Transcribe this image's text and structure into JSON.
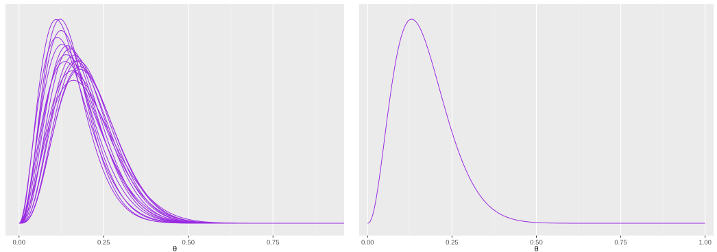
{
  "colors": {
    "curve": "#9a2be2",
    "panel": "#ebebeb",
    "grid": "#ffffff"
  },
  "chart_data": [
    {
      "type": "line",
      "title": "",
      "xlabel": "θ",
      "ylabel": "",
      "xlim": [
        -0.04,
        0.96
      ],
      "ylim": [
        0,
        1.06
      ],
      "x_ticks": [
        "0.00",
        "0.25",
        "0.50",
        "0.75"
      ],
      "grid": true,
      "legend": "none",
      "density_family": "beta",
      "series": [
        {
          "a": 3.9,
          "b": 22.0
        },
        {
          "a": 3.4,
          "b": 20.5
        },
        {
          "a": 3.7,
          "b": 20.0
        },
        {
          "a": 3.1,
          "b": 17.5
        },
        {
          "a": 3.4,
          "b": 17.5
        },
        {
          "a": 3.9,
          "b": 18.5
        },
        {
          "a": 4.1,
          "b": 18.5
        },
        {
          "a": 3.5,
          "b": 16.5
        },
        {
          "a": 4.3,
          "b": 18.0
        },
        {
          "a": 4.2,
          "b": 17.0
        },
        {
          "a": 3.2,
          "b": 15.0
        },
        {
          "a": 4.5,
          "b": 17.5
        },
        {
          "a": 4.4,
          "b": 16.5
        },
        {
          "a": 3.5,
          "b": 14.5
        },
        {
          "a": 4.3,
          "b": 16.0
        },
        {
          "a": 3.3,
          "b": 13.0
        }
      ]
    },
    {
      "type": "line",
      "title": "",
      "xlabel": "θ",
      "ylabel": "",
      "xlim": [
        -0.025,
        1.025
      ],
      "ylim": [
        0,
        1.06
      ],
      "x_ticks": [
        "0.00",
        "0.25",
        "0.50",
        "0.75",
        "1.00"
      ],
      "grid": true,
      "legend": "none",
      "density_family": "beta",
      "series": [
        {
          "a": 3.4,
          "b": 17.0
        }
      ]
    }
  ]
}
